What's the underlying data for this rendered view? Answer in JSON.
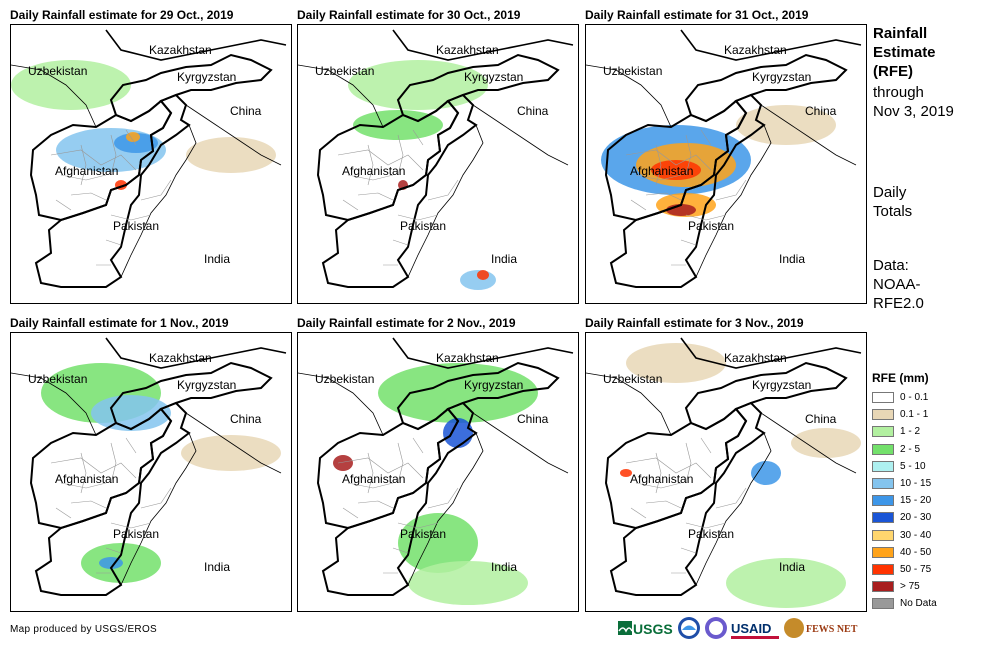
{
  "panels": [
    {
      "title": "Daily Rainfall estimate for 29 Oct., 2019"
    },
    {
      "title": "Daily Rainfall estimate for 30 Oct., 2019"
    },
    {
      "title": "Daily Rainfall estimate for 31 Oct., 2019"
    },
    {
      "title": "Daily Rainfall estimate for 1 Nov., 2019"
    },
    {
      "title": "Daily Rainfall estimate for 2 Nov., 2019"
    },
    {
      "title": "Daily Rainfall estimate for 3 Nov., 2019"
    }
  ],
  "country_labels": {
    "kazakhstan": "Kazakhstan",
    "uzbekistan": "Uzbekistan",
    "kyrgyzstan": "Kyrgyzstan",
    "china": "China",
    "afghanistan": "Afghanistan",
    "pakistan": "Pakistan",
    "india": "India"
  },
  "side": {
    "title_line1": "Rainfall",
    "title_line2": "Estimate",
    "title_line3": "(RFE)",
    "through": "through",
    "date": "Nov 3, 2019",
    "daily": "Daily",
    "totals": "Totals",
    "data_label": "Data:",
    "source_line1": "NOAA-",
    "source_line2": "RFE2.0"
  },
  "legend": {
    "title": "RFE (mm)",
    "items": [
      {
        "label": "0 - 0.1",
        "color": "#ffffff"
      },
      {
        "label": "0.1 - 1",
        "color": "#e8d7b6"
      },
      {
        "label": "1 - 2",
        "color": "#b2f0a0"
      },
      {
        "label": "2 - 5",
        "color": "#73e06b"
      },
      {
        "label": "5 - 10",
        "color": "#aef0f0"
      },
      {
        "label": "10 - 15",
        "color": "#84c4ee"
      },
      {
        "label": "15 - 20",
        "color": "#3d96e8"
      },
      {
        "label": "20 - 30",
        "color": "#1a55d6"
      },
      {
        "label": "30 - 40",
        "color": "#ffd66e"
      },
      {
        "label": "40 - 50",
        "color": "#ffa31a"
      },
      {
        "label": "50 - 75",
        "color": "#ff3300"
      },
      {
        "label": "> 75",
        "color": "#a81e1e"
      },
      {
        "label": "No Data",
        "color": "#999999"
      }
    ]
  },
  "credit": "Map produced by USGS/EROS",
  "logos": {
    "usgs": "USGS",
    "usaid": "USAID",
    "fewsnet": "FEWS NET"
  }
}
